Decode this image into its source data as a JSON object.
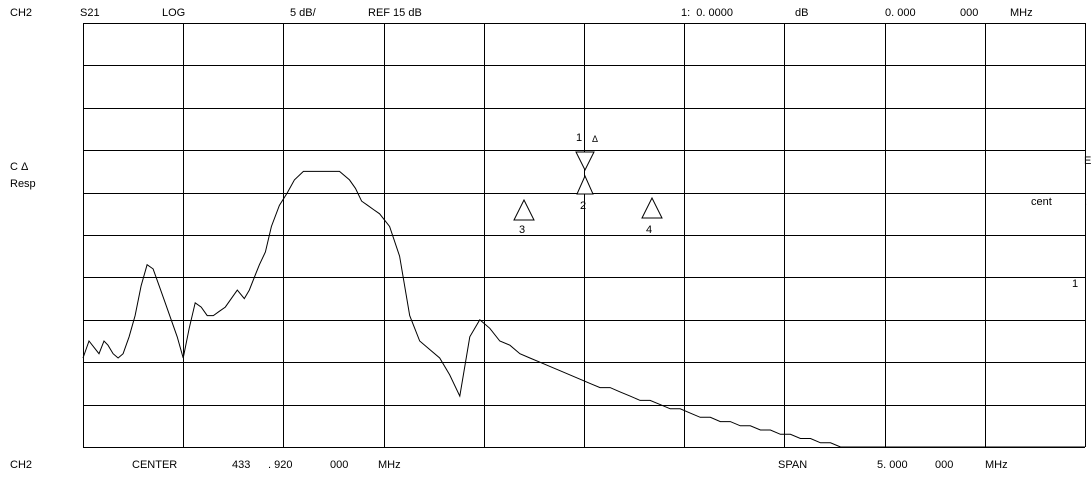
{
  "header": {
    "channel": "CH2",
    "param": "S21",
    "format": "LOG",
    "scale": "5 dB/",
    "ref": "REF 15 dB",
    "marker_readout": "1:  0. 0000",
    "marker_unit": "dB",
    "marker_freq": "0. 000",
    "marker_freq2": "000",
    "marker_freq_unit": "MHz"
  },
  "side": {
    "c_delta": "C Δ",
    "resp": "Resp",
    "cent": "cent",
    "edge_e": "E",
    "edge_colon": ":",
    "edge_one": "1"
  },
  "footer": {
    "channel": "CH2",
    "center_label": "CENTER",
    "center_val1": "433",
    "center_val2": ". 920",
    "center_val3": "000",
    "center_unit": "MHz",
    "span_label": "SPAN",
    "span_val1": "5. 000",
    "span_val2": "000",
    "span_unit": "MHz"
  },
  "markers": [
    {
      "label": "1",
      "sublabel": "Δ"
    },
    {
      "label": "2"
    },
    {
      "label": "3"
    },
    {
      "label": "4"
    }
  ],
  "chart_data": {
    "type": "line",
    "xlabel": "",
    "ylabel": "",
    "xlim": [
      431.42,
      436.42
    ],
    "ylim": [
      -35,
      15
    ],
    "x_units": "MHz",
    "y_units": "dB",
    "grid": true,
    "series": [
      {
        "x": [
          431.42,
          431.45,
          431.5,
          431.525,
          431.545,
          431.57,
          431.595,
          431.62,
          431.65,
          431.68,
          431.71,
          431.74,
          431.77,
          431.8,
          431.83,
          431.86,
          431.89,
          431.92,
          431.95,
          431.98,
          432.01,
          432.04,
          432.07,
          432.1,
          432.13,
          432.16,
          432.19,
          432.225,
          432.25,
          432.275,
          432.3,
          432.33,
          432.36,
          432.4,
          432.44,
          432.475,
          432.52,
          432.58,
          432.64,
          432.7,
          432.75,
          432.78,
          432.81,
          432.84,
          432.87,
          432.9,
          432.95,
          433.0,
          433.05,
          433.1,
          433.15,
          433.2,
          433.25,
          433.3,
          433.35,
          433.4,
          433.45,
          433.5,
          433.55,
          433.6,
          433.65,
          433.7,
          433.75,
          433.8,
          433.85,
          433.9,
          433.95,
          434.0,
          434.05,
          434.1,
          434.15,
          434.2,
          434.25,
          434.3,
          434.35,
          434.4,
          434.45,
          434.5,
          434.55,
          434.6,
          434.65,
          434.7,
          434.75,
          434.8,
          434.85,
          434.9,
          434.95,
          435.0,
          435.05,
          435.1,
          435.15,
          435.2,
          435.25,
          435.3,
          435.4,
          435.5,
          435.6,
          435.7,
          435.8,
          435.9,
          436.0,
          436.1,
          436.2,
          436.3,
          436.42
        ],
        "y": [
          -24.5,
          -22.5,
          -24.0,
          -22.5,
          -23.0,
          -24.0,
          -24.5,
          -24.0,
          -22.0,
          -19.5,
          -16.0,
          -13.5,
          -14.0,
          -16.0,
          -18.0,
          -20.0,
          -22.0,
          -24.5,
          -21.0,
          -18.0,
          -18.5,
          -19.5,
          -19.5,
          -19.0,
          -18.5,
          -17.5,
          -16.5,
          -17.5,
          -16.5,
          -15.0,
          -13.5,
          -12.0,
          -9.0,
          -6.5,
          -5.0,
          -3.5,
          -2.5,
          -2.5,
          -2.5,
          -2.5,
          -3.5,
          -4.5,
          -6.0,
          -6.5,
          -7.0,
          -7.5,
          -9.0,
          -12.5,
          -19.5,
          -22.5,
          -23.5,
          -24.5,
          -26.5,
          -29.0,
          -22.0,
          -20.0,
          -21.0,
          -22.5,
          -23.0,
          -24.0,
          -24.5,
          -25.0,
          -25.5,
          -26.0,
          -26.5,
          -27.0,
          -27.5,
          -28.0,
          -28.0,
          -28.5,
          -29.0,
          -29.5,
          -29.5,
          -30.0,
          -30.5,
          -30.5,
          -31.0,
          -31.5,
          -31.5,
          -32.0,
          -32.0,
          -32.5,
          -32.5,
          -33.0,
          -33.0,
          -33.5,
          -33.5,
          -34.0,
          -34.0,
          -34.5,
          -34.5,
          -35.0,
          -35.0,
          -35.0,
          -35.0,
          -35.0,
          -35.0,
          -35.0,
          -35.0,
          -35.0,
          -35.0,
          -35.0,
          -35.0,
          -35.0,
          -35.0
        ]
      }
    ]
  }
}
